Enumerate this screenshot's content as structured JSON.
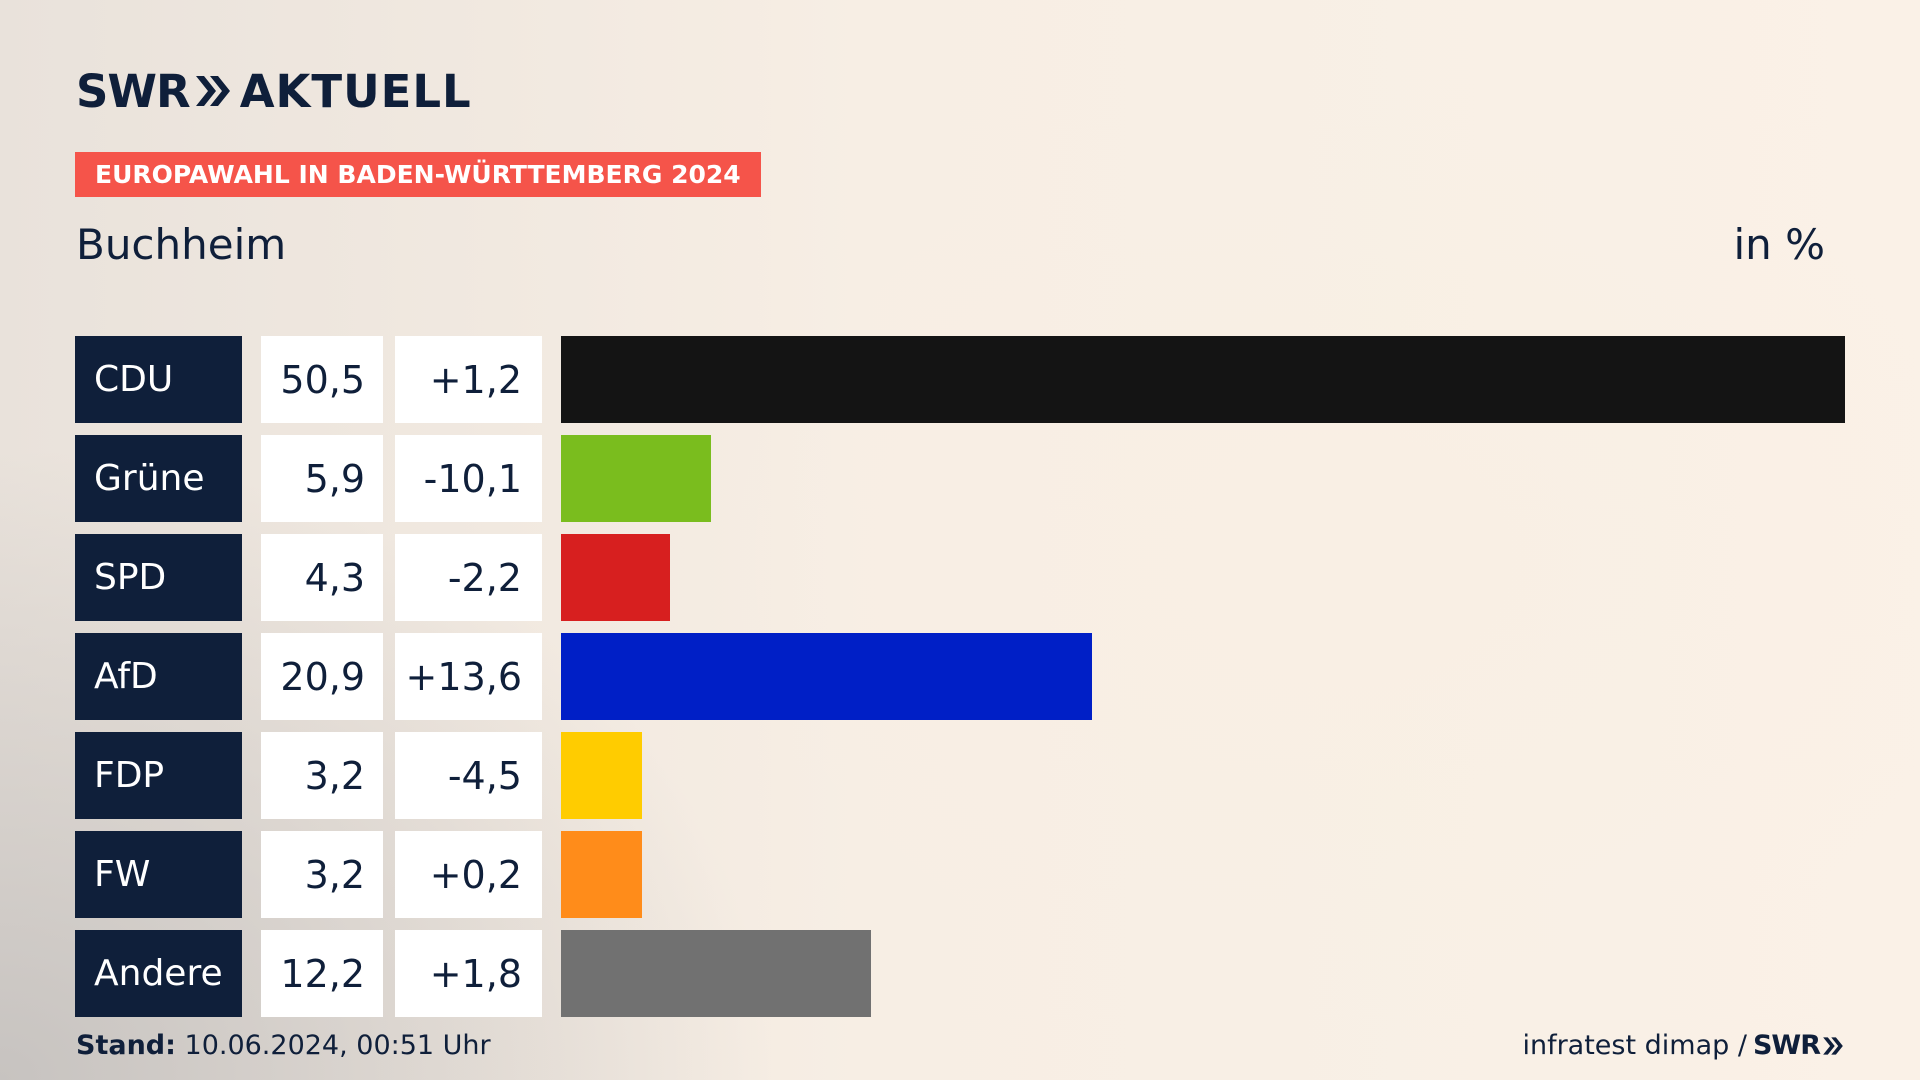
{
  "header": {
    "logo_swr": "SWR",
    "logo_aktuell": "AKTUELL",
    "badge": "EUROPAWAHL IN BADEN-WÜRTTEMBERG 2024",
    "location": "Buchheim",
    "unit": "in %"
  },
  "footer": {
    "stand_label": "Stand:",
    "stand_value": "10.06.2024, 00:51 Uhr",
    "source": "infratest dimap /",
    "source_logo": "SWR"
  },
  "colors": {
    "navy": "#0f1f3a",
    "badge": "#f5544a"
  },
  "chart_data": {
    "type": "bar",
    "categories": [
      "CDU",
      "Grüne",
      "SPD",
      "AfD",
      "FDP",
      "FW",
      "Andere"
    ],
    "values": [
      50.5,
      5.9,
      4.3,
      20.9,
      3.2,
      3.2,
      12.2
    ],
    "value_labels": [
      "50,5",
      "5,9",
      "4,3",
      "20,9",
      "3,2",
      "3,2",
      "12,2"
    ],
    "diff_labels": [
      "+1,2",
      "-10,1",
      "-2,2",
      "+13,6",
      "-4,5",
      "+0,2",
      "+1,8"
    ],
    "colors": [
      "#141414",
      "#7abd1e",
      "#d71f1f",
      "#001fc6",
      "#ffcc00",
      "#ff8c1a",
      "#717171"
    ],
    "unit": "in %"
  }
}
